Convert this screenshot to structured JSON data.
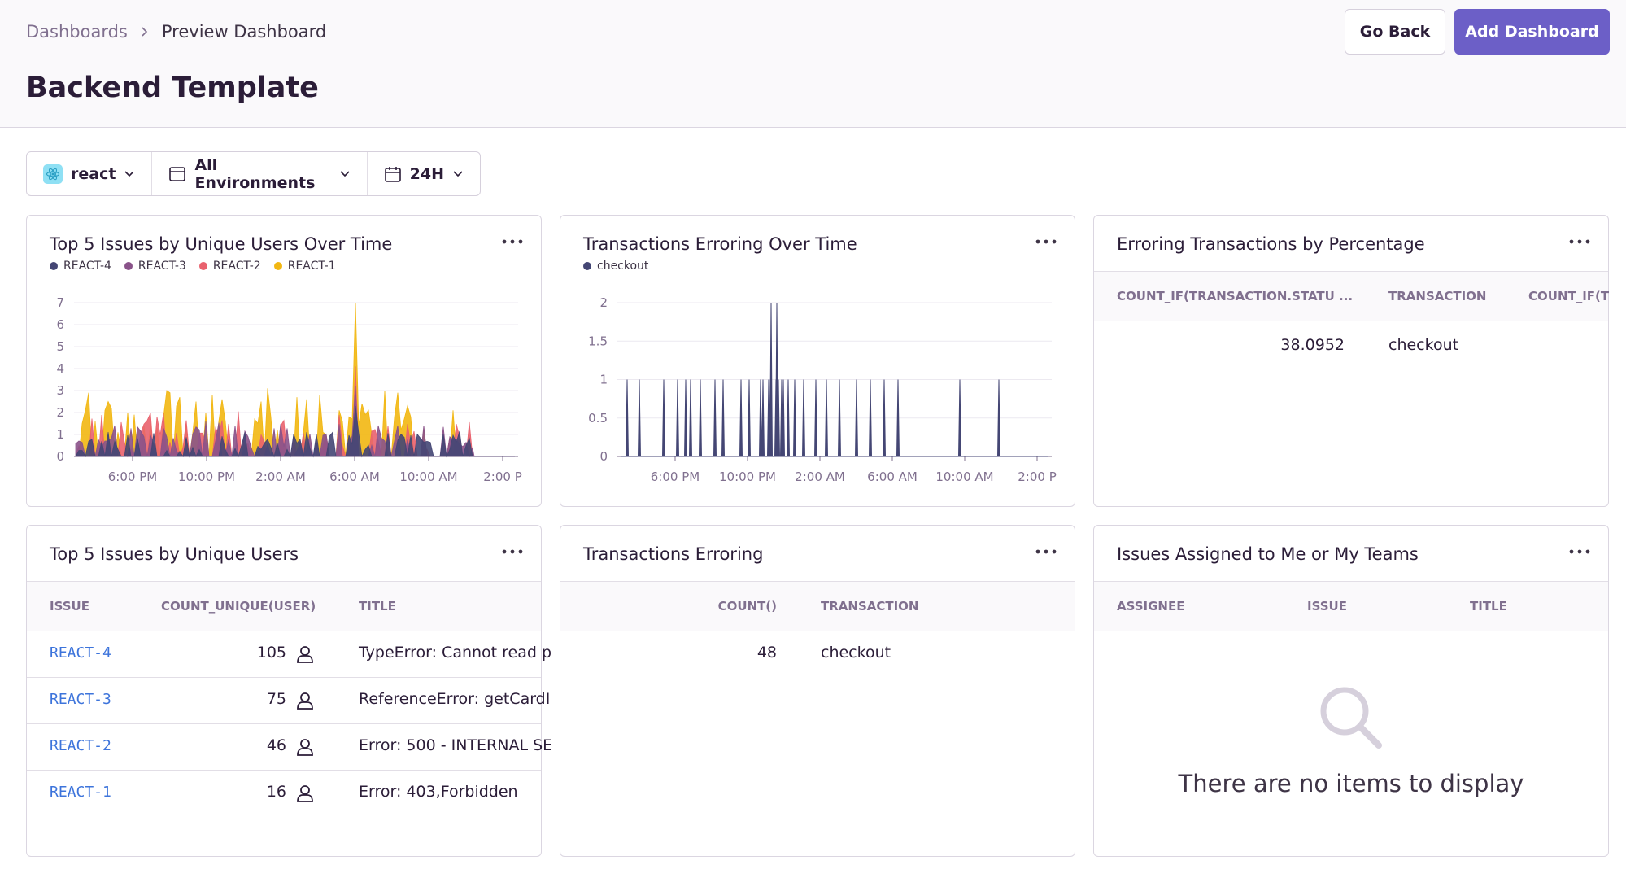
{
  "breadcrumb": {
    "root": "Dashboards",
    "current": "Preview Dashboard"
  },
  "page_title": "Backend Template",
  "actions": {
    "back": "Go Back",
    "add": "Add Dashboard"
  },
  "filters": {
    "project": "react",
    "environment": "All Environments",
    "period": "24H"
  },
  "colors": {
    "accent": "#6c5fc7",
    "link": "#3d74db",
    "series": [
      "#444674",
      "#895289",
      "#e9626e",
      "#f2b712"
    ]
  },
  "widgets": {
    "issues_over_time": {
      "title": "Top 5 Issues by Unique Users Over Time",
      "legend": [
        "REACT-4",
        "REACT-3",
        "REACT-2",
        "REACT-1"
      ],
      "y_ticks": [
        "0",
        "1",
        "2",
        "3",
        "4",
        "5",
        "6",
        "7"
      ],
      "x_ticks": [
        "6:00 PM",
        "10:00 PM",
        "2:00 AM",
        "6:00 AM",
        "10:00 AM",
        "2:00 P"
      ]
    },
    "transactions_over_time": {
      "title": "Transactions Erroring Over Time",
      "legend": [
        "checkout"
      ],
      "y_ticks": [
        "0",
        "0.5",
        "1",
        "1.5",
        "2"
      ],
      "x_ticks": [
        "6:00 PM",
        "10:00 PM",
        "2:00 AM",
        "6:00 AM",
        "10:00 AM",
        "2:00 P"
      ]
    },
    "erroring_pct": {
      "title": "Erroring Transactions by Percentage",
      "columns": [
        "COUNT_IF(TRANSACTION.STATU ...",
        "TRANSACTION",
        "COUNT_IF(T"
      ],
      "rows": [
        {
          "value": "38.0952",
          "transaction": "checkout"
        }
      ]
    },
    "top_issues": {
      "title": "Top 5 Issues by Unique Users",
      "columns": [
        "ISSUE",
        "COUNT_UNIQUE(USER)",
        "TITLE"
      ],
      "rows": [
        {
          "issue": "REACT-4",
          "count": "105",
          "title": "TypeError: Cannot read p"
        },
        {
          "issue": "REACT-3",
          "count": "75",
          "title": "ReferenceError: getCardI"
        },
        {
          "issue": "REACT-2",
          "count": "46",
          "title": "Error: 500 - INTERNAL SE"
        },
        {
          "issue": "REACT-1",
          "count": "16",
          "title": "Error: 403,Forbidden"
        }
      ]
    },
    "transactions_erroring": {
      "title": "Transactions Erroring",
      "columns": [
        "COUNT()",
        "TRANSACTION"
      ],
      "rows": [
        {
          "count": "48",
          "transaction": "checkout"
        }
      ]
    },
    "assigned_issues": {
      "title": "Issues Assigned to Me or My Teams",
      "columns": [
        "ASSIGNEE",
        "ISSUE",
        "TITLE"
      ],
      "empty_message": "There are no items to display"
    }
  }
}
